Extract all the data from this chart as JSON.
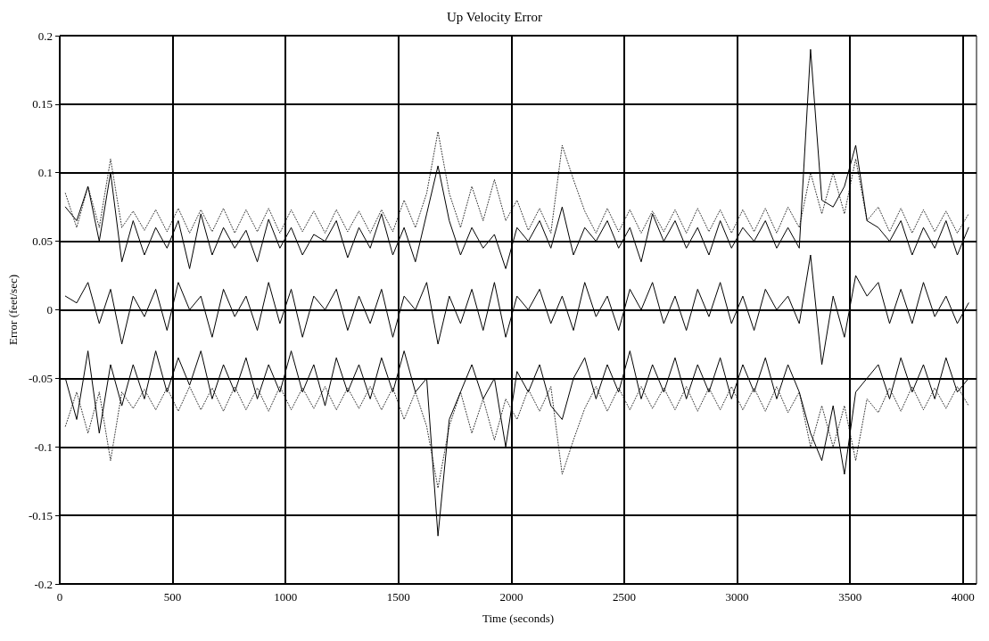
{
  "chart_data": {
    "type": "line",
    "title": "Up Velocity Error",
    "xlabel": "Time (seconds)",
    "ylabel": "Error (feet/sec)",
    "x": [
      25,
      75,
      125,
      175,
      225,
      275,
      325,
      375,
      425,
      475,
      525,
      575,
      625,
      675,
      725,
      775,
      825,
      875,
      925,
      975,
      1025,
      1075,
      1125,
      1175,
      1225,
      1275,
      1325,
      1375,
      1425,
      1475,
      1525,
      1575,
      1625,
      1675,
      1725,
      1775,
      1825,
      1875,
      1925,
      1975,
      2025,
      2075,
      2125,
      2175,
      2225,
      2275,
      2325,
      2375,
      2425,
      2475,
      2525,
      2575,
      2625,
      2675,
      2725,
      2775,
      2825,
      2875,
      2925,
      2975,
      3025,
      3075,
      3125,
      3175,
      3225,
      3275,
      3325,
      3375,
      3425,
      3475,
      3525,
      3575,
      3625,
      3675,
      3725,
      3775,
      3825,
      3875,
      3925,
      3975,
      4025
    ],
    "series": [
      {
        "color": "#000000",
        "line_style": "dotted",
        "values": [
          0.085,
          0.06,
          0.09,
          0.06,
          0.11,
          0.06,
          0.072,
          0.058,
          0.073,
          0.057,
          0.074,
          0.056,
          0.073,
          0.057,
          0.074,
          0.056,
          0.073,
          0.057,
          0.074,
          0.056,
          0.073,
          0.057,
          0.072,
          0.056,
          0.073,
          0.057,
          0.072,
          0.056,
          0.073,
          0.057,
          0.08,
          0.06,
          0.085,
          0.13,
          0.085,
          0.06,
          0.09,
          0.065,
          0.095,
          0.065,
          0.08,
          0.058,
          0.074,
          0.056,
          0.12,
          0.095,
          0.072,
          0.056,
          0.074,
          0.057,
          0.073,
          0.056,
          0.072,
          0.057,
          0.073,
          0.056,
          0.074,
          0.057,
          0.073,
          0.056,
          0.073,
          0.057,
          0.074,
          0.056,
          0.075,
          0.06,
          0.1,
          0.07,
          0.1,
          0.07,
          0.11,
          0.065,
          0.075,
          0.057,
          0.074,
          0.056,
          0.073,
          0.057,
          0.072,
          0.056,
          0.07
        ]
      },
      {
        "color": "#000000",
        "line_style": "dotted",
        "values": [
          -0.085,
          -0.06,
          -0.09,
          -0.06,
          -0.11,
          -0.06,
          -0.072,
          -0.058,
          -0.073,
          -0.057,
          -0.074,
          -0.056,
          -0.073,
          -0.057,
          -0.074,
          -0.056,
          -0.073,
          -0.057,
          -0.074,
          -0.056,
          -0.073,
          -0.057,
          -0.072,
          -0.056,
          -0.073,
          -0.057,
          -0.072,
          -0.056,
          -0.073,
          -0.057,
          -0.08,
          -0.06,
          -0.085,
          -0.13,
          -0.085,
          -0.06,
          -0.09,
          -0.065,
          -0.095,
          -0.065,
          -0.08,
          -0.058,
          -0.074,
          -0.056,
          -0.12,
          -0.095,
          -0.072,
          -0.056,
          -0.074,
          -0.057,
          -0.073,
          -0.056,
          -0.072,
          -0.057,
          -0.073,
          -0.056,
          -0.074,
          -0.057,
          -0.073,
          -0.056,
          -0.073,
          -0.057,
          -0.074,
          -0.056,
          -0.075,
          -0.06,
          -0.1,
          -0.07,
          -0.1,
          -0.07,
          -0.11,
          -0.065,
          -0.075,
          -0.057,
          -0.074,
          -0.056,
          -0.073,
          -0.057,
          -0.072,
          -0.056,
          -0.07
        ]
      },
      {
        "color": "#000000",
        "line_style": "solid",
        "values": [
          0.075,
          0.065,
          0.09,
          0.05,
          0.1,
          0.035,
          0.065,
          0.04,
          0.06,
          0.045,
          0.065,
          0.03,
          0.07,
          0.04,
          0.06,
          0.045,
          0.058,
          0.035,
          0.066,
          0.045,
          0.06,
          0.04,
          0.055,
          0.05,
          0.065,
          0.038,
          0.06,
          0.045,
          0.07,
          0.04,
          0.06,
          0.035,
          0.07,
          0.105,
          0.065,
          0.04,
          0.06,
          0.045,
          0.055,
          0.03,
          0.06,
          0.05,
          0.065,
          0.045,
          0.075,
          0.04,
          0.06,
          0.05,
          0.065,
          0.045,
          0.06,
          0.035,
          0.07,
          0.05,
          0.065,
          0.045,
          0.06,
          0.04,
          0.065,
          0.045,
          0.06,
          0.05,
          0.065,
          0.045,
          0.06,
          0.045,
          0.19,
          0.08,
          0.075,
          0.09,
          0.12,
          0.065,
          0.06,
          0.05,
          0.065,
          0.04,
          0.06,
          0.045,
          0.065,
          0.04,
          0.06
        ]
      },
      {
        "color": "#000000",
        "line_style": "solid",
        "values": [
          0.01,
          0.005,
          0.02,
          -0.01,
          0.015,
          -0.025,
          0.01,
          -0.005,
          0.015,
          -0.015,
          0.02,
          0,
          0.01,
          -0.02,
          0.015,
          -0.005,
          0.01,
          -0.015,
          0.02,
          -0.01,
          0.015,
          -0.02,
          0.01,
          0,
          0.015,
          -0.015,
          0.01,
          -0.01,
          0.015,
          -0.02,
          0.01,
          0,
          0.02,
          -0.025,
          0.01,
          -0.01,
          0.015,
          -0.015,
          0.02,
          -0.02,
          0.01,
          0,
          0.015,
          -0.01,
          0.01,
          -0.015,
          0.02,
          -0.005,
          0.01,
          -0.015,
          0.015,
          0,
          0.02,
          -0.01,
          0.01,
          -0.015,
          0.015,
          -0.005,
          0.02,
          -0.01,
          0.01,
          -0.015,
          0.015,
          0,
          0.01,
          -0.01,
          0.04,
          -0.04,
          0.01,
          -0.02,
          0.025,
          0.01,
          0.02,
          -0.01,
          0.015,
          -0.01,
          0.02,
          -0.005,
          0.01,
          -0.01,
          0.005
        ]
      },
      {
        "color": "#000000",
        "line_style": "solid",
        "values": [
          -0.05,
          -0.08,
          -0.03,
          -0.09,
          -0.04,
          -0.07,
          -0.04,
          -0.065,
          -0.03,
          -0.06,
          -0.035,
          -0.055,
          -0.03,
          -0.065,
          -0.04,
          -0.06,
          -0.035,
          -0.065,
          -0.04,
          -0.06,
          -0.03,
          -0.06,
          -0.04,
          -0.07,
          -0.035,
          -0.06,
          -0.04,
          -0.065,
          -0.035,
          -0.06,
          -0.03,
          -0.06,
          -0.05,
          -0.165,
          -0.08,
          -0.06,
          -0.04,
          -0.065,
          -0.05,
          -0.1,
          -0.045,
          -0.06,
          -0.04,
          -0.07,
          -0.08,
          -0.05,
          -0.035,
          -0.065,
          -0.04,
          -0.06,
          -0.03,
          -0.065,
          -0.04,
          -0.06,
          -0.035,
          -0.065,
          -0.04,
          -0.06,
          -0.035,
          -0.065,
          -0.04,
          -0.06,
          -0.035,
          -0.065,
          -0.04,
          -0.06,
          -0.09,
          -0.11,
          -0.07,
          -0.12,
          -0.06,
          -0.05,
          -0.04,
          -0.065,
          -0.035,
          -0.06,
          -0.04,
          -0.065,
          -0.035,
          -0.06,
          -0.05
        ]
      }
    ],
    "xlim": [
      0,
      4060
    ],
    "xticks": [
      0,
      500,
      1000,
      1500,
      2000,
      2500,
      3000,
      3500,
      4000
    ],
    "ylim": [
      -0.2,
      0.2
    ],
    "yticks": [
      -0.2,
      -0.15,
      -0.1,
      -0.05,
      0,
      0.05,
      0.1,
      0.15,
      0.2
    ],
    "grid": true,
    "marker": "none"
  }
}
